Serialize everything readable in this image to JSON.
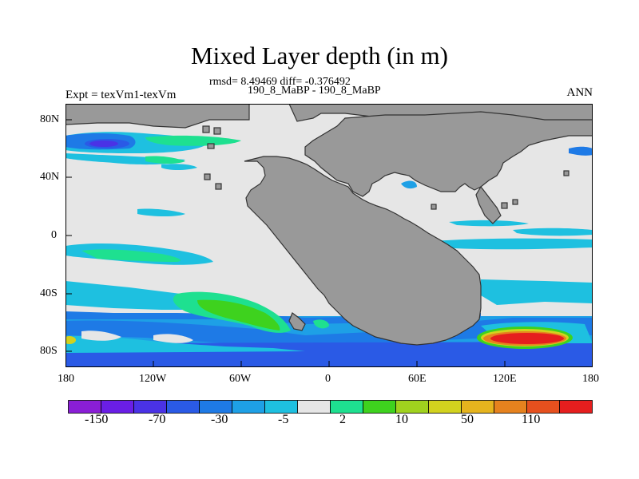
{
  "title": "Mixed Layer depth (in m)",
  "stats_line": "rmsd= 8.49469 diff= -0.376492",
  "case_line": "190_8_MaBP - 190_8_MaBP",
  "left_label": "Expt = texVm1-texVm",
  "right_label": "ANN",
  "x_ticks": [
    "180",
    "120W",
    "60W",
    "0",
    "60E",
    "120E",
    "180"
  ],
  "y_ticks": [
    "80N",
    "40N",
    "0",
    "40S",
    "80S"
  ],
  "colorbar": {
    "colors": [
      "#8a1ed6",
      "#6a1ee6",
      "#4a32e6",
      "#2a5ae6",
      "#1e7ae6",
      "#1ea0e6",
      "#1ec0e0",
      "#e6e6e6",
      "#1ee090",
      "#3ed21e",
      "#a0d21e",
      "#d2d21e",
      "#e6b41e",
      "#e6821e",
      "#e6501e",
      "#e61e1e"
    ],
    "labels": [
      "-150",
      "-70",
      "-30",
      "-5",
      "2",
      "10",
      "50",
      "110"
    ]
  },
  "chart_data": {
    "type": "heatmap",
    "title": "Mixed Layer depth (in m)",
    "x_range": [
      -180,
      180
    ],
    "y_range": [
      -90,
      90
    ],
    "land_color": "#999999",
    "background_value_color": "#e6e6e6",
    "features": [
      {
        "region": "north Pacific",
        "lon": [
          -175,
          -100
        ],
        "lat": [
          55,
          70
        ],
        "approx_value": -70
      },
      {
        "region": "south Pacific band",
        "lon": [
          -100,
          -40
        ],
        "lat": [
          -55,
          -40
        ],
        "approx_value": 10
      },
      {
        "region": "Southern Ocean",
        "lon": [
          -180,
          180
        ],
        "lat": [
          -85,
          -60
        ],
        "approx_value": -30
      },
      {
        "region": "Southern Ocean east",
        "lon": [
          110,
          180
        ],
        "lat": [
          -80,
          -65
        ],
        "approx_value": 110
      }
    ]
  }
}
